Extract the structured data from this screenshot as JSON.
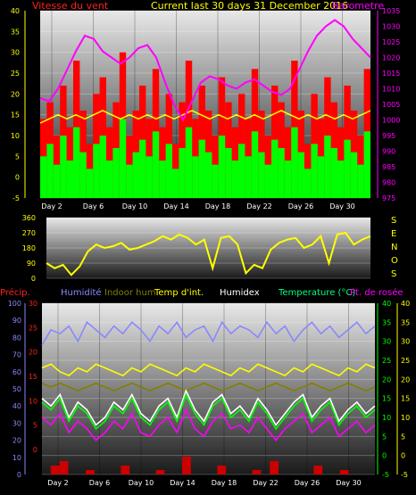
{
  "chart_data": [
    {
      "type": "line",
      "panel": "wind-barometer",
      "title": "Current last 30 days 31 December 2016",
      "left_axis_label": "Vitesse du vent",
      "right_axis_label": "Barometre",
      "left_ylim": [
        -5,
        40
      ],
      "left_ticks": [
        "40",
        "35",
        "30",
        "25",
        "20",
        "15",
        "10",
        "5",
        "0",
        "-5"
      ],
      "right_ylim": [
        975,
        1035
      ],
      "right_ticks": [
        "1035",
        "1030",
        "1025",
        "1020",
        "1015",
        "1010",
        "1005",
        "1000",
        "995",
        "990",
        "985",
        "980",
        "975"
      ],
      "x_ticks": [
        "Day 2",
        "Day 6",
        "Day 10",
        "Day 14",
        "Day 18",
        "Day 22",
        "Day 26",
        "Day 30"
      ],
      "grid": true,
      "colors": {
        "gust": "#ff0000",
        "wind": "#00ff00",
        "baro": "#ff00ff",
        "yellow": "#ffff00",
        "avg": "#000000"
      },
      "series": {
        "gust": [
          14,
          18,
          10,
          22,
          12,
          28,
          16,
          8,
          20,
          24,
          12,
          18,
          30,
          10,
          16,
          22,
          14,
          26,
          12,
          20,
          8,
          18,
          28,
          14,
          22,
          16,
          10,
          24,
          18,
          12,
          20,
          14,
          26,
          16,
          10,
          22,
          18,
          12,
          28,
          16,
          8,
          20,
          14,
          24,
          18,
          12,
          22,
          16,
          10,
          26
        ],
        "wind": [
          5,
          8,
          3,
          10,
          4,
          12,
          6,
          2,
          8,
          10,
          4,
          7,
          14,
          3,
          6,
          9,
          5,
          11,
          4,
          8,
          2,
          7,
          12,
          5,
          9,
          6,
          3,
          10,
          7,
          4,
          8,
          5,
          11,
          6,
          3,
          9,
          7,
          4,
          12,
          6,
          2,
          8,
          5,
          10,
          7,
          4,
          9,
          6,
          3,
          11
        ],
        "baro": [
          1007,
          1006,
          1010,
          1016,
          1022,
          1027,
          1026,
          1022,
          1020,
          1018,
          1020,
          1023,
          1024,
          1020,
          1012,
          1005,
          1000,
          1006,
          1012,
          1014,
          1013,
          1011,
          1010,
          1012,
          1013,
          1011,
          1009,
          1008,
          1010,
          1016,
          1022,
          1027,
          1030,
          1032,
          1030,
          1026,
          1023,
          1020
        ],
        "yellow": [
          13,
          14,
          15,
          14,
          15,
          14,
          15,
          16,
          15,
          14,
          15,
          14,
          15,
          14,
          15,
          14,
          15,
          16,
          15,
          14,
          15,
          14,
          15,
          14,
          15,
          14,
          15,
          16,
          15,
          14,
          15,
          14,
          15,
          14,
          15,
          14,
          15,
          16
        ]
      }
    },
    {
      "type": "scatter",
      "panel": "wind-direction",
      "left_ticks": [
        "360",
        "270",
        "180",
        "90",
        "0"
      ],
      "ylim": [
        0,
        360
      ],
      "right_labels": [
        "S",
        "E",
        "N",
        "O",
        "S"
      ],
      "values": [
        90,
        60,
        80,
        20,
        70,
        160,
        200,
        180,
        190,
        210,
        170,
        180,
        200,
        220,
        250,
        230,
        260,
        240,
        200,
        230,
        60,
        240,
        250,
        200,
        30,
        80,
        60,
        170,
        210,
        230,
        240,
        180,
        200,
        250,
        90,
        260,
        270,
        200,
        230,
        250
      ]
    },
    {
      "type": "line",
      "panel": "temperature-humidity",
      "labels": {
        "precip": "Précip.",
        "humidity": "Humidité",
        "indoor_hum": "Indoor hum",
        "temp_int": "Temp d'int.",
        "humidex": "Humidex",
        "temperature": "Temperature (°C)",
        "dewpoint": "Pt. de rosée"
      },
      "left1_ticks": [
        "100",
        "90",
        "80",
        "70",
        "60",
        "50",
        "40",
        "30",
        "20",
        "10",
        "0"
      ],
      "left2_ticks": [
        "30",
        "25",
        "20",
        "15",
        "10",
        "5",
        "0"
      ],
      "right_ticks": [
        "40",
        "35",
        "30",
        "25",
        "20",
        "15",
        "10",
        "5",
        "0",
        "-5"
      ],
      "ylim": [
        -5,
        40
      ],
      "x_ticks": [
        "Day 2",
        "Day 6",
        "Day 10",
        "Day 14",
        "Day 18",
        "Day 22",
        "Day 26",
        "Day 30"
      ],
      "colors": {
        "humidity": "#8888ff",
        "indoor_hum": "#808000",
        "temp_int": "#ffff00",
        "humidex": "#ffffff",
        "temperature": "#00ff00",
        "dewpoint": "#ff00ff",
        "precip": "#cc0000"
      },
      "series": {
        "humidity": [
          29,
          33,
          32,
          34,
          30,
          35,
          33,
          31,
          34,
          32,
          35,
          33,
          30,
          34,
          32,
          35,
          31,
          33,
          34,
          30,
          35,
          32,
          34,
          33,
          31,
          35,
          32,
          34,
          30,
          33,
          35,
          32,
          34,
          31,
          33,
          35,
          32,
          34
        ],
        "indoor_hum": [
          19,
          18,
          19,
          18,
          17,
          18,
          19,
          18,
          17,
          18,
          19,
          18,
          17,
          18,
          19,
          18,
          17,
          18,
          19,
          18,
          17,
          18,
          19,
          18,
          17,
          18,
          19,
          18,
          17,
          18,
          19,
          18,
          17,
          18,
          19,
          18,
          17,
          18
        ],
        "temp_int": [
          23,
          24,
          22,
          21,
          23,
          22,
          24,
          23,
          22,
          21,
          23,
          22,
          24,
          23,
          22,
          21,
          23,
          22,
          24,
          23,
          22,
          21,
          23,
          22,
          24,
          23,
          22,
          21,
          23,
          22,
          24,
          23,
          22,
          21,
          23,
          22,
          24,
          23
        ],
        "humidex": [
          15,
          13,
          16,
          10,
          14,
          12,
          8,
          10,
          14,
          12,
          16,
          11,
          9,
          13,
          15,
          10,
          17,
          12,
          9,
          14,
          16,
          11,
          13,
          10,
          15,
          12,
          8,
          11,
          14,
          16,
          10,
          13,
          15,
          9,
          12,
          14,
          11,
          13
        ],
        "temperature": [
          14,
          12,
          15,
          9,
          13,
          11,
          7,
          9,
          13,
          11,
          15,
          10,
          8,
          12,
          14,
          9,
          16,
          11,
          8,
          13,
          15,
          10,
          12,
          9,
          14,
          11,
          7,
          10,
          13,
          15,
          9,
          12,
          14,
          8,
          11,
          13,
          10,
          12
        ],
        "dewpoint": [
          10,
          8,
          11,
          6,
          9,
          7,
          4,
          6,
          9,
          7,
          11,
          6,
          5,
          8,
          10,
          6,
          12,
          7,
          5,
          9,
          11,
          7,
          8,
          6,
          10,
          7,
          4,
          7,
          9,
          11,
          6,
          8,
          10,
          5,
          7,
          9,
          6,
          8
        ],
        "precip": [
          0,
          2,
          3,
          0,
          0,
          1,
          0,
          0,
          0,
          2,
          0,
          0,
          0,
          1,
          0,
          0,
          4,
          0,
          0,
          0,
          2,
          0,
          0,
          0,
          1,
          0,
          3,
          0,
          0,
          0,
          0,
          2,
          0,
          0,
          1,
          0,
          0,
          0
        ]
      }
    }
  ]
}
